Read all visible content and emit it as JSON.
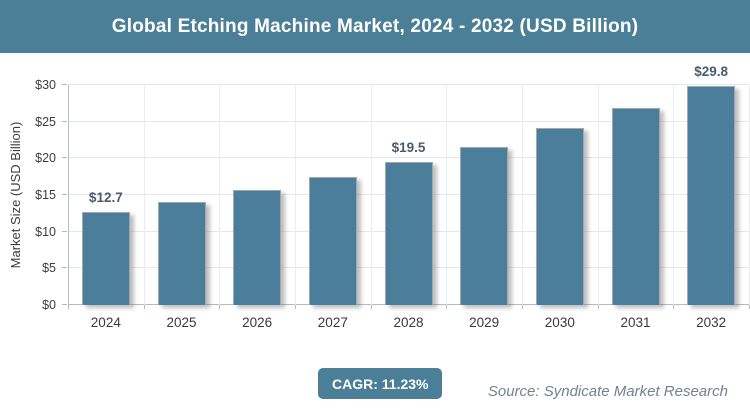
{
  "header": {
    "title": "Global Etching Machine Market, 2024 - 2032 (USD Billion)"
  },
  "chart_data": {
    "type": "bar",
    "title": "Global Etching Machine Market, 2024 - 2032 (USD Billion)",
    "categories": [
      "2024",
      "2025",
      "2026",
      "2027",
      "2028",
      "2029",
      "2030",
      "2031",
      "2032"
    ],
    "values": [
      12.7,
      14.1,
      15.7,
      17.5,
      19.5,
      21.6,
      24.1,
      26.8,
      29.8
    ],
    "bar_labels": [
      "$12.7",
      null,
      null,
      null,
      "$19.5",
      null,
      null,
      null,
      "$29.8"
    ],
    "xlabel": "",
    "ylabel": "Market Size (USD Billion)",
    "ylim": [
      0,
      30
    ],
    "ytick_step": 5,
    "ytick_labels": [
      "$0",
      "$5",
      "$10",
      "$15",
      "$20",
      "$25",
      "$30"
    ],
    "grid": true,
    "legend": false,
    "bar_color": "#4a7e9b"
  },
  "footer": {
    "cagr_badge": "CAGR: 11.23%",
    "source": "Source: Syndicate Market Research"
  },
  "colors": {
    "header_bg": "#4b7e97",
    "badge_bg": "#4b7e97",
    "bar": "#4a7e9b",
    "value_label": "#4a5b70",
    "source_text": "#71838f"
  }
}
